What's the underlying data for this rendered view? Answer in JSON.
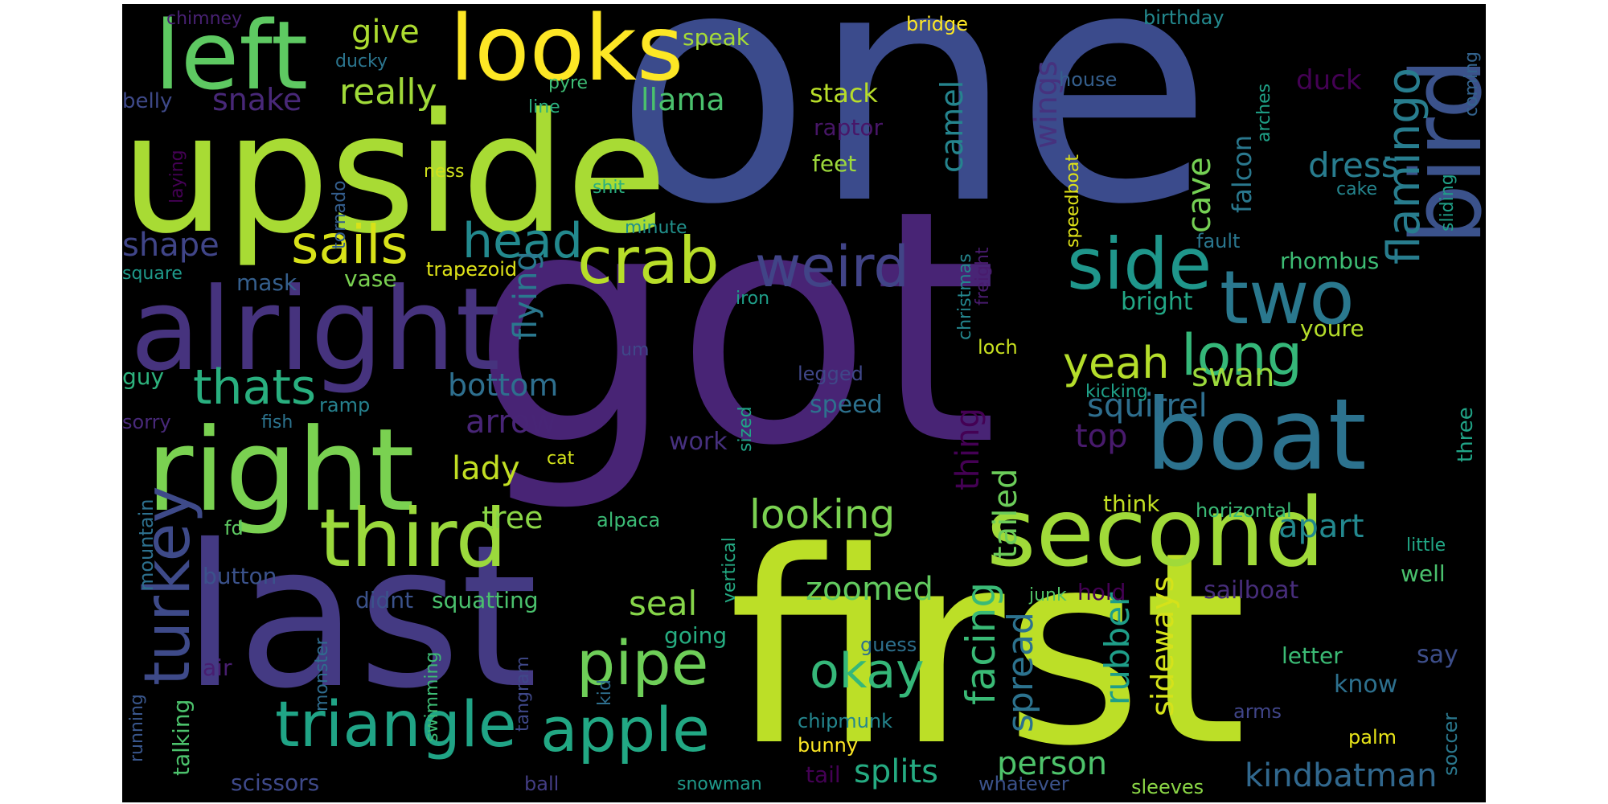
{
  "wordcloud": {
    "background": "#000000",
    "words": [
      {
        "text": "one",
        "color": "#3b4b8c"
      },
      {
        "text": "got",
        "color": "#482475"
      },
      {
        "text": "first",
        "color": "#bcdf27"
      },
      {
        "text": "upside",
        "color": "#a8db34"
      },
      {
        "text": "last",
        "color": "#443a83"
      },
      {
        "text": "alright",
        "color": "#46337e"
      },
      {
        "text": "right",
        "color": "#7ad151"
      },
      {
        "text": "left",
        "color": "#5ec962"
      },
      {
        "text": "looks",
        "color": "#fde725"
      },
      {
        "text": "second",
        "color": "#a0da39"
      },
      {
        "text": "boat",
        "color": "#2c728e"
      },
      {
        "text": "bird",
        "color": "#3b528b"
      },
      {
        "text": "third",
        "color": "#9bd93c"
      },
      {
        "text": "turkey",
        "color": "#3e4a89"
      },
      {
        "text": "triangle",
        "color": "#20a486"
      },
      {
        "text": "crab",
        "color": "#b8de29"
      },
      {
        "text": "weird",
        "color": "#414487"
      },
      {
        "text": "side",
        "color": "#1f968b"
      },
      {
        "text": "two",
        "color": "#2a788e"
      },
      {
        "text": "apple",
        "color": "#22a884"
      },
      {
        "text": "pipe",
        "color": "#6ece58"
      },
      {
        "text": "sails",
        "color": "#d8e219"
      },
      {
        "text": "head",
        "color": "#23898e"
      },
      {
        "text": "thats",
        "color": "#29af7f"
      },
      {
        "text": "long",
        "color": "#35b779"
      },
      {
        "text": "flamingo",
        "color": "#287d8e"
      },
      {
        "text": "okay",
        "color": "#35b779"
      },
      {
        "text": "looking",
        "color": "#7ad151"
      },
      {
        "text": "yeah",
        "color": "#b5de2b"
      },
      {
        "text": "give",
        "color": "#addc30"
      },
      {
        "text": "really",
        "color": "#a0da39"
      },
      {
        "text": "snake",
        "color": "#482878"
      },
      {
        "text": "llama",
        "color": "#4ac16d"
      },
      {
        "text": "stack",
        "color": "#b8de29"
      },
      {
        "text": "dress",
        "color": "#287c8e"
      },
      {
        "text": "camel",
        "color": "#25848e"
      },
      {
        "text": "wings",
        "color": "#46327e"
      },
      {
        "text": "cave",
        "color": "#75d054"
      },
      {
        "text": "falcon",
        "color": "#2a788e"
      },
      {
        "text": "shape",
        "color": "#404588"
      },
      {
        "text": "flying",
        "color": "#2a788e"
      },
      {
        "text": "bottom",
        "color": "#2e6f8e"
      },
      {
        "text": "arrow",
        "color": "#482576"
      },
      {
        "text": "lady",
        "color": "#c2df23"
      },
      {
        "text": "tree",
        "color": "#8bd646"
      },
      {
        "text": "seal",
        "color": "#86d549"
      },
      {
        "text": "zoomed",
        "color": "#63cb5f"
      },
      {
        "text": "facing",
        "color": "#3aba76"
      },
      {
        "text": "tailed",
        "color": "#6ccd5a"
      },
      {
        "text": "thing",
        "color": "#440154"
      },
      {
        "text": "spread",
        "color": "#2c728e"
      },
      {
        "text": "person",
        "color": "#4ec36b"
      },
      {
        "text": "splits",
        "color": "#25ab82"
      },
      {
        "text": "squirrel",
        "color": "#2e6e8e"
      },
      {
        "text": "swan",
        "color": "#9bd93c"
      },
      {
        "text": "top",
        "color": "#481a6c"
      },
      {
        "text": "rubber",
        "color": "#1f9e89"
      },
      {
        "text": "sideways",
        "color": "#d5e21a"
      },
      {
        "text": "apart",
        "color": "#23888e"
      },
      {
        "text": "kindbatman",
        "color": "#31688e"
      },
      {
        "text": "going",
        "color": "#26ad81"
      },
      {
        "text": "speak",
        "color": "#a5db36"
      },
      {
        "text": "bridge",
        "color": "#fde725"
      },
      {
        "text": "birthday",
        "color": "#23898e"
      },
      {
        "text": "chimney",
        "color": "#482173"
      },
      {
        "text": "ducky",
        "color": "#2b758e"
      },
      {
        "text": "pyre",
        "color": "#3dbc74"
      },
      {
        "text": "line",
        "color": "#2ab07f"
      },
      {
        "text": "belly",
        "color": "#3e4989"
      },
      {
        "text": "house",
        "color": "#355f8d"
      },
      {
        "text": "duck",
        "color": "#440154"
      },
      {
        "text": "raptor",
        "color": "#481668"
      },
      {
        "text": "feet",
        "color": "#9dd93b"
      },
      {
        "text": "ness",
        "color": "#d0e11c"
      },
      {
        "text": "shit",
        "color": "#29af7f"
      },
      {
        "text": "laying",
        "color": "#440154"
      },
      {
        "text": "tornado",
        "color": "#345e8d"
      },
      {
        "text": "minute",
        "color": "#21918c"
      },
      {
        "text": "christmas",
        "color": "#24868e"
      },
      {
        "text": "freight",
        "color": "#481b6d"
      },
      {
        "text": "speedboat",
        "color": "#dfe318"
      },
      {
        "text": "cake",
        "color": "#25858e"
      },
      {
        "text": "arches",
        "color": "#1fa187"
      },
      {
        "text": "sliding",
        "color": "#1fa088"
      },
      {
        "text": "coming",
        "color": "#33638d"
      },
      {
        "text": "fault",
        "color": "#2a768e"
      },
      {
        "text": "rhombus",
        "color": "#3dbc74"
      },
      {
        "text": "trapezoid",
        "color": "#dfe318"
      },
      {
        "text": "square",
        "color": "#1f9a8a"
      },
      {
        "text": "mask",
        "color": "#355f8d"
      },
      {
        "text": "vase",
        "color": "#7ad151"
      },
      {
        "text": "iron",
        "color": "#1f9e89"
      },
      {
        "text": "bright",
        "color": "#22a785"
      },
      {
        "text": "youre",
        "color": "#b5de2b"
      },
      {
        "text": "loch",
        "color": "#c8e020"
      },
      {
        "text": "um",
        "color": "#3f4788"
      },
      {
        "text": "legged",
        "color": "#3f4788"
      },
      {
        "text": "guy",
        "color": "#2db27d"
      },
      {
        "text": "ramp",
        "color": "#26818e"
      },
      {
        "text": "sorry",
        "color": "#482979"
      },
      {
        "text": "fish",
        "color": "#2c738e"
      },
      {
        "text": "speed",
        "color": "#2d718e"
      },
      {
        "text": "kicking",
        "color": "#1fa088"
      },
      {
        "text": "sized",
        "color": "#20a486"
      },
      {
        "text": "three",
        "color": "#20a386"
      },
      {
        "text": "work",
        "color": "#46307e"
      },
      {
        "text": "cat",
        "color": "#d2e21b"
      },
      {
        "text": "mountain",
        "color": "#2d708e"
      },
      {
        "text": "fd",
        "color": "#5ec962"
      },
      {
        "text": "think",
        "color": "#c2df23"
      },
      {
        "text": "horizontal",
        "color": "#3aba76"
      },
      {
        "text": "alpaca",
        "color": "#3bbb75"
      },
      {
        "text": "little",
        "color": "#21a685"
      },
      {
        "text": "button",
        "color": "#3b528b"
      },
      {
        "text": "didnt",
        "color": "#3b528b"
      },
      {
        "text": "squatting",
        "color": "#4ac16d"
      },
      {
        "text": "hold",
        "color": "#440154"
      },
      {
        "text": "sailboat",
        "color": "#472d7b"
      },
      {
        "text": "well",
        "color": "#4ac16d"
      },
      {
        "text": "junk",
        "color": "#52c569"
      },
      {
        "text": "vertical",
        "color": "#24aa83"
      },
      {
        "text": "monster",
        "color": "#2f6c8e"
      },
      {
        "text": "air",
        "color": "#481e70"
      },
      {
        "text": "guess",
        "color": "#2d708e"
      },
      {
        "text": "letter",
        "color": "#3bbb75"
      },
      {
        "text": "say",
        "color": "#3d4e8a"
      },
      {
        "text": "know",
        "color": "#2d708e"
      },
      {
        "text": "tangram",
        "color": "#3f4889"
      },
      {
        "text": "kid",
        "color": "#2e6f8e"
      },
      {
        "text": "swimming",
        "color": "#3dbc74"
      },
      {
        "text": "running",
        "color": "#39568c"
      },
      {
        "text": "talking",
        "color": "#4cc26c"
      },
      {
        "text": "chipmunk",
        "color": "#24868e"
      },
      {
        "text": "arms",
        "color": "#404588"
      },
      {
        "text": "palm",
        "color": "#e7e419"
      },
      {
        "text": "soccer",
        "color": "#2a788e"
      },
      {
        "text": "bunny",
        "color": "#fde725"
      },
      {
        "text": "tail",
        "color": "#440154"
      },
      {
        "text": "snowman",
        "color": "#1f9a8a"
      },
      {
        "text": "whatever",
        "color": "#3b528b"
      },
      {
        "text": "sleeves",
        "color": "#8bd646"
      },
      {
        "text": "scissors",
        "color": "#3e4989"
      },
      {
        "text": "ball",
        "color": "#433d84"
      }
    ]
  }
}
